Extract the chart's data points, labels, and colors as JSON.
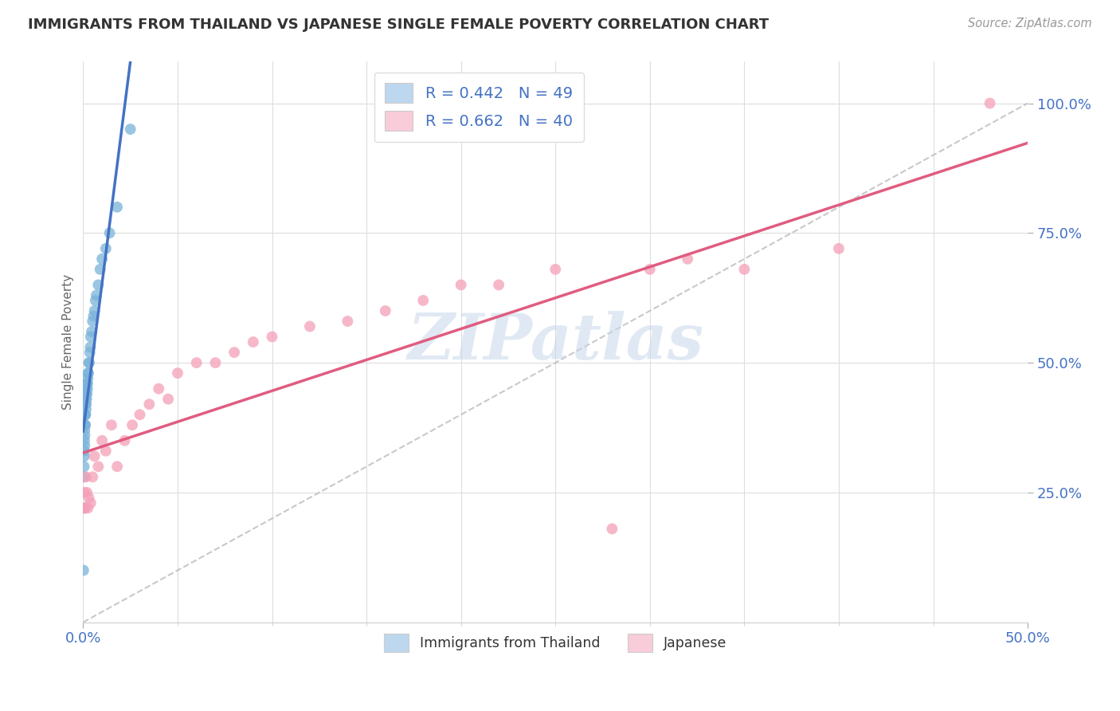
{
  "title": "IMMIGRANTS FROM THAILAND VS JAPANESE SINGLE FEMALE POVERTY CORRELATION CHART",
  "source": "Source: ZipAtlas.com",
  "ylabel": "Single Female Poverty",
  "legend_labels": [
    "Immigrants from Thailand",
    "Japanese"
  ],
  "r_values": [
    0.442,
    0.662
  ],
  "n_values": [
    49,
    40
  ],
  "blue_color": "#7ab3d9",
  "pink_color": "#f4a0b8",
  "blue_fill": "#bdd7ee",
  "pink_fill": "#f8ccd8",
  "blue_line": "#4472c4",
  "pink_line": "#e05c80",
  "dash_color": "#bbbbbb",
  "watermark": "ZIPatlas",
  "blue_scatter_x": [
    0.0002,
    0.0003,
    0.0004,
    0.0005,
    0.0005,
    0.0006,
    0.0007,
    0.0007,
    0.0008,
    0.0008,
    0.0009,
    0.001,
    0.001,
    0.0011,
    0.0012,
    0.0012,
    0.0013,
    0.0014,
    0.0015,
    0.0015,
    0.0016,
    0.0017,
    0.0018,
    0.0019,
    0.002,
    0.0021,
    0.0022,
    0.0023,
    0.0025,
    0.0026,
    0.0028,
    0.003,
    0.0032,
    0.0035,
    0.0038,
    0.004,
    0.0045,
    0.005,
    0.0055,
    0.006,
    0.0065,
    0.007,
    0.008,
    0.009,
    0.01,
    0.012,
    0.014,
    0.018,
    0.025
  ],
  "blue_scatter_y": [
    0.1,
    0.22,
    0.28,
    0.3,
    0.33,
    0.32,
    0.35,
    0.38,
    0.34,
    0.37,
    0.36,
    0.38,
    0.4,
    0.4,
    0.38,
    0.42,
    0.4,
    0.43,
    0.41,
    0.44,
    0.42,
    0.44,
    0.43,
    0.45,
    0.44,
    0.46,
    0.45,
    0.46,
    0.47,
    0.48,
    0.48,
    0.5,
    0.5,
    0.52,
    0.53,
    0.55,
    0.56,
    0.58,
    0.59,
    0.6,
    0.62,
    0.63,
    0.65,
    0.68,
    0.7,
    0.72,
    0.75,
    0.8,
    0.95
  ],
  "pink_scatter_x": [
    0.0003,
    0.0006,
    0.001,
    0.0015,
    0.002,
    0.0025,
    0.003,
    0.004,
    0.005,
    0.006,
    0.008,
    0.01,
    0.012,
    0.015,
    0.018,
    0.022,
    0.026,
    0.03,
    0.035,
    0.04,
    0.045,
    0.05,
    0.06,
    0.07,
    0.08,
    0.09,
    0.1,
    0.12,
    0.14,
    0.16,
    0.18,
    0.2,
    0.22,
    0.25,
    0.28,
    0.3,
    0.32,
    0.35,
    0.4,
    0.48
  ],
  "pink_scatter_y": [
    0.22,
    0.25,
    0.22,
    0.28,
    0.25,
    0.22,
    0.24,
    0.23,
    0.28,
    0.32,
    0.3,
    0.35,
    0.33,
    0.38,
    0.3,
    0.35,
    0.38,
    0.4,
    0.42,
    0.45,
    0.43,
    0.48,
    0.5,
    0.5,
    0.52,
    0.54,
    0.55,
    0.57,
    0.58,
    0.6,
    0.62,
    0.65,
    0.65,
    0.68,
    0.18,
    0.68,
    0.7,
    0.68,
    0.72,
    1.0
  ],
  "xmin": 0.0,
  "xmax": 0.5,
  "ymin": 0.0,
  "ymax": 1.08,
  "ytick_positions": [
    0.25,
    0.5,
    0.75,
    1.0
  ],
  "ytick_labels": [
    "25.0%",
    "50.0%",
    "75.0%",
    "100.0%"
  ],
  "xtick_positions": [
    0.0,
    0.5
  ],
  "xtick_labels": [
    "0.0%",
    "50.0%"
  ]
}
